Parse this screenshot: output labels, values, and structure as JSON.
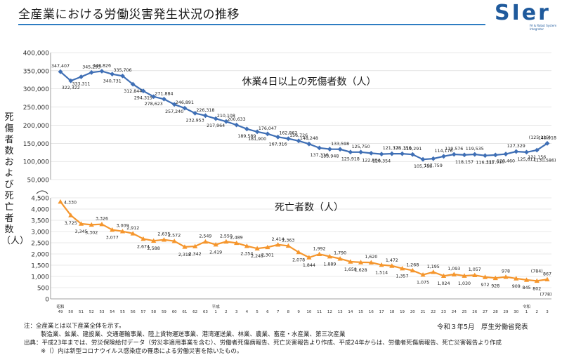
{
  "page": {
    "title": "全産業における労働災害発生状況の推移",
    "logo_text": "SIer",
    "logo_sub": "FA & Robot System Integrator",
    "y_axis_label": "死傷者数および死亡者数（人）",
    "notes": [
      "注：全産業とは以下産業全体を示す。",
      "製造業、鉱業、建設業、交通運輸事業、陸上貨物運送事業、港湾運送業、林業、農業、畜産・水産業、第三次産業",
      "出典：平成23年までは、労災保険給付データ（労災非適用事業を含む）、労働者死傷病報告、死亡災害報告より作成、平成24年からは、労働者死傷病報告、死亡災害報告より作成",
      "※（）内は新型コロナウイルス感染症の罹患による労働災害を除いたもの。"
    ],
    "source_date": "令和３年5月　厚生労働省発表"
  },
  "chart_data": [
    {
      "type": "line",
      "title": "休業4日以上の死傷者数（人）",
      "color": "#3f6fb5",
      "ylim": [
        50000,
        400000
      ],
      "yticks": [
        "50,000",
        "100,000",
        "150,000",
        "200,000",
        "250,000",
        "300,000",
        "350,000",
        "400,000"
      ],
      "x": [
        "49",
        "50",
        "51",
        "52",
        "53",
        "54",
        "55",
        "56",
        "57",
        "58",
        "59",
        "60",
        "61",
        "62",
        "63",
        "1",
        "2",
        "3",
        "4",
        "5",
        "6",
        "7",
        "8",
        "9",
        "10",
        "11",
        "12",
        "13",
        "14",
        "15",
        "16",
        "17",
        "18",
        "19",
        "20",
        "21",
        "22",
        "23",
        "24",
        "25",
        "26",
        "27",
        "28",
        "29",
        "30",
        "1",
        "2",
        "3"
      ],
      "era_labels": [
        "昭和",
        "平成",
        "令和"
      ],
      "values": [
        347407,
        322322,
        333311,
        345293,
        348826,
        340731,
        335706,
        312844,
        294319,
        278623,
        271884,
        257240,
        246891,
        232953,
        226318,
        217964,
        210108,
        200633,
        189589,
        181900,
        176047,
        167316,
        162862,
        156726,
        148248,
        137316,
        133948,
        133598,
        125918,
        125750,
        122804,
        120354,
        121378,
        121356,
        119291,
        105718,
        107759,
        114176,
        119576,
        118157,
        119535,
        116311,
        117910,
        120460,
        127329,
        125611,
        131156,
        149918
      ],
      "labels": [
        "347,407",
        "322,322",
        "333,311",
        "345,293",
        "348,826",
        "340,731",
        "335,706",
        "312,844",
        "294,319",
        "278,623",
        "271,884",
        "257,240",
        "246,891",
        "232,953",
        "226,318",
        "217,964",
        "210,108",
        "200,633",
        "189,589",
        "181,900",
        "176,047",
        "167,316",
        "162,862",
        "156,726",
        "148,248",
        "137,316",
        "133,948",
        "133,598",
        "125,918",
        "125,750",
        "122,804",
        "120,354",
        "121,378",
        "121,356",
        "119,291",
        "105,718",
        "107,759",
        "114,176",
        "119,576",
        "118,157",
        "119,535",
        "116,311",
        "117,910",
        "120,460",
        "127,329",
        "125,611",
        "131,156",
        "149,918"
      ],
      "extra_labels": [
        "(125,115)",
        "(130,586)"
      ]
    },
    {
      "type": "line",
      "title": "死亡者数（人）",
      "color": "#f5962d",
      "ylim": [
        0,
        4500
      ],
      "yticks": [
        "0",
        "500",
        "1,000",
        "1,500",
        "2,000",
        "2,500",
        "3,000",
        "3,500",
        "4,000",
        "4,500"
      ],
      "values": [
        4330,
        3725,
        3345,
        3302,
        3326,
        3077,
        3009,
        2912,
        2674,
        2588,
        2635,
        2572,
        2318,
        2342,
        2549,
        2419,
        2550,
        2489,
        2354,
        2245,
        2301,
        2414,
        2363,
        2078,
        1844,
        1992,
        1889,
        1790,
        1658,
        1628,
        1620,
        1514,
        1472,
        1357,
        1268,
        1075,
        1195,
        1024,
        1093,
        1030,
        1057,
        972,
        928,
        978,
        909,
        845,
        802,
        867
      ],
      "labels": [
        "4,330",
        "3,725",
        "3,345",
        "3,302",
        "3,326",
        "3,077",
        "3,009",
        "2,912",
        "2,674",
        "2,588",
        "2,635",
        "2,572",
        "2,318",
        "2,342",
        "2,549",
        "2,419",
        "2,550",
        "2,489",
        "2,354",
        "2,245",
        "2,301",
        "2,414",
        "2,363",
        "2,078",
        "1,844",
        "1,992",
        "1,889",
        "1,790",
        "1,658",
        "1,628",
        "1,620",
        "1,514",
        "1,472",
        "1,357",
        "1,268",
        "1,075",
        "1,195",
        "1,024",
        "1,093",
        "1,030",
        "1,057",
        "972",
        "928",
        "978",
        "909",
        "845",
        "802",
        "867"
      ],
      "extra_labels": [
        "(784)",
        "(778)"
      ]
    }
  ]
}
